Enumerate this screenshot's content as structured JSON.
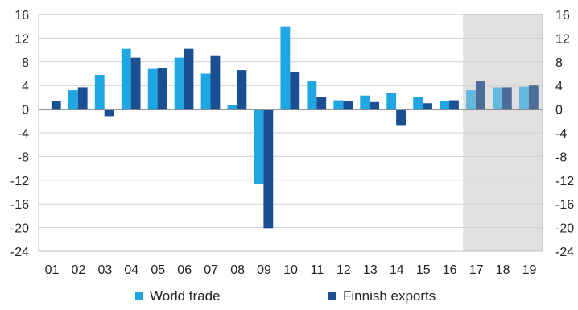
{
  "chart_data": {
    "type": "bar",
    "title": "",
    "xlabel": "",
    "ylabel": "",
    "categories": [
      "01",
      "02",
      "03",
      "04",
      "05",
      "06",
      "07",
      "08",
      "09",
      "10",
      "11",
      "12",
      "13",
      "14",
      "15",
      "16",
      "17",
      "18",
      "19"
    ],
    "series": [
      {
        "name": "World trade",
        "values": [
          -0.2,
          3.2,
          5.8,
          10.2,
          6.8,
          8.7,
          6.0,
          0.7,
          -12.7,
          14.0,
          4.7,
          1.5,
          2.3,
          2.8,
          2.1,
          1.4,
          3.2,
          3.7,
          3.8
        ],
        "color": "#1ea7e3",
        "forecast_color": "#63b8de"
      },
      {
        "name": "Finnish exports",
        "values": [
          1.3,
          3.7,
          -1.2,
          8.7,
          6.9,
          10.2,
          9.1,
          6.6,
          -20.1,
          6.2,
          2.0,
          1.3,
          1.2,
          -2.7,
          1.0,
          1.5,
          4.7,
          3.7,
          4.0
        ],
        "color": "#1b4f94",
        "forecast_color": "#4b6d98"
      }
    ],
    "y_ticks": [
      "16",
      "12",
      "8",
      "4",
      "0",
      "-4",
      "-8",
      "-12",
      "-16",
      "-20",
      "-24"
    ],
    "ylim": [
      -24,
      16
    ],
    "forecast_from_index": 16,
    "forecast_shading_color": "#e0e0e0",
    "grid": "horizontal",
    "legend_placement": "bottom"
  }
}
